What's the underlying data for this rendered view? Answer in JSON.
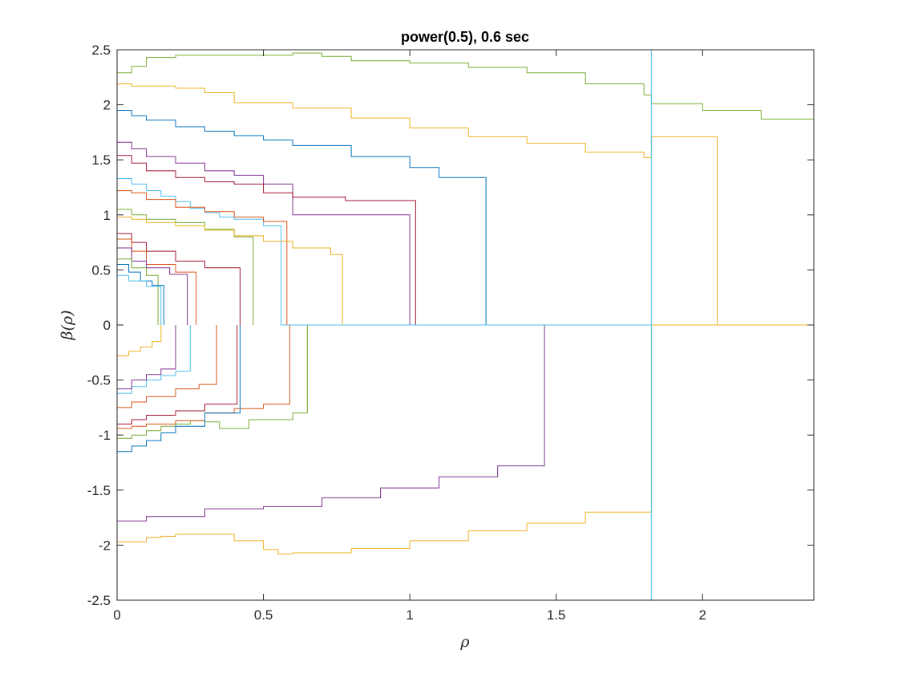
{
  "chart_data": {
    "type": "line",
    "title": "power(0.5), 0.6 sec",
    "xlabel": "ρ",
    "ylabel": "β(ρ)",
    "xlim": [
      0,
      2.38
    ],
    "ylim": [
      -2.5,
      2.5
    ],
    "x_ticks": [
      0,
      0.5,
      1,
      1.5,
      2
    ],
    "x_tick_labels": [
      "0",
      "0.5",
      "1",
      "1.5",
      "2"
    ],
    "y_ticks": [
      -2.5,
      -2,
      -1.5,
      -1,
      -0.5,
      0,
      0.5,
      1,
      1.5,
      2,
      2.5
    ],
    "y_tick_labels": [
      "-2.5",
      "-2",
      "-1.5",
      "-1",
      "-0.5",
      "0",
      "0.5",
      "1",
      "1.5",
      "2",
      "2.5"
    ],
    "grid": false,
    "box": true,
    "vertical_marker": {
      "x": 1.825,
      "color": "#4DBEEE"
    },
    "series": [
      {
        "color": "#77AC30",
        "x": [
          0,
          0.05,
          0.1,
          0.2,
          0.3,
          0.4,
          0.5,
          0.6,
          0.7,
          0.8,
          1.0,
          1.2,
          1.4,
          1.6,
          1.8,
          1.825,
          2.0,
          2.2,
          2.38,
          2.38,
          2.38
        ],
        "y": [
          2.29,
          2.35,
          2.43,
          2.45,
          2.45,
          2.45,
          2.45,
          2.47,
          2.44,
          2.4,
          2.38,
          2.34,
          2.29,
          2.19,
          2.09,
          2.01,
          1.95,
          1.87,
          1.79,
          0,
          0
        ]
      },
      {
        "color": "#EDB120",
        "x": [
          0,
          0.05,
          0.1,
          0.2,
          0.3,
          0.4,
          0.6,
          0.8,
          1.0,
          1.2,
          1.4,
          1.6,
          1.8,
          1.825,
          1.825,
          2.05,
          2.05,
          2.38
        ],
        "y": [
          2.19,
          2.17,
          2.17,
          2.15,
          2.11,
          2.02,
          1.97,
          1.88,
          1.79,
          1.71,
          1.65,
          1.57,
          1.52,
          1.52,
          1.71,
          1.61,
          0,
          0
        ]
      },
      {
        "color": "#0072BD",
        "x": [
          0,
          0.05,
          0.1,
          0.2,
          0.3,
          0.4,
          0.5,
          0.6,
          0.8,
          1.0,
          1.1,
          1.26,
          1.26,
          2.38
        ],
        "y": [
          1.95,
          1.9,
          1.86,
          1.8,
          1.76,
          1.72,
          1.68,
          1.63,
          1.53,
          1.43,
          1.34,
          1.19,
          0,
          0
        ]
      },
      {
        "color": "#7E2F8E",
        "x": [
          0,
          0.05,
          0.1,
          0.2,
          0.3,
          0.4,
          0.5,
          0.6,
          0.6,
          1.0,
          1.26,
          1.26,
          1.46,
          1.46,
          1.3,
          1.1,
          0.9,
          0.7,
          0.5,
          0.3,
          0.1,
          0
        ],
        "y": [
          1.66,
          1.6,
          1.53,
          1.47,
          1.4,
          1.36,
          1.28,
          1.14,
          1.0,
          0.0,
          0.0,
          0.0,
          0.0,
          -1.28,
          -1.38,
          -1.48,
          -1.57,
          -1.65,
          -1.67,
          -1.74,
          -1.78,
          -1.79
        ]
      },
      {
        "color": "#A2142F",
        "x": [
          0,
          0.05,
          0.1,
          0.2,
          0.3,
          0.4,
          0.5,
          0.6,
          0.78,
          0.78,
          1.02,
          1.02,
          0.9,
          0.6,
          0.6
        ],
        "y": [
          1.54,
          1.47,
          1.4,
          1.34,
          1.3,
          1.28,
          1.2,
          1.16,
          1.17,
          1.13,
          1.04,
          0,
          0,
          0,
          0
        ]
      },
      {
        "color": "#4DBEEE",
        "x": [
          0,
          0.05,
          0.1,
          0.15,
          0.2,
          0.25,
          0.3,
          0.35,
          0.4,
          0.5,
          0.56,
          0.56,
          2.38
        ],
        "y": [
          1.33,
          1.28,
          1.22,
          1.17,
          1.12,
          1.06,
          1.02,
          0.98,
          0.96,
          0.9,
          0.87,
          0,
          0
        ]
      },
      {
        "color": "#D95319",
        "x": [
          0,
          0.05,
          0.1,
          0.2,
          0.3,
          0.4,
          0.5,
          0.58,
          0.58
        ],
        "y": [
          1.22,
          1.2,
          1.14,
          1.07,
          1.03,
          0.98,
          0.94,
          0.89,
          0
        ]
      },
      {
        "color": "#77AC30",
        "x": [
          0,
          0.05,
          0.1,
          0.2,
          0.3,
          0.4,
          0.465,
          0.465
        ],
        "y": [
          1.05,
          1.0,
          0.96,
          0.93,
          0.87,
          0.8,
          0.63,
          0
        ]
      },
      {
        "color": "#EDB120",
        "x": [
          0,
          0.05,
          0.1,
          0.2,
          0.3,
          0.4,
          0.5,
          0.6,
          0.73,
          0.77,
          0.77
        ],
        "y": [
          0.98,
          0.96,
          0.93,
          0.9,
          0.86,
          0.81,
          0.76,
          0.7,
          0.64,
          0.58,
          0
        ]
      },
      {
        "color": "#A2142F",
        "x": [
          0,
          0.05,
          0.1,
          0.2,
          0.3,
          0.42,
          0.42
        ],
        "y": [
          0.83,
          0.75,
          0.67,
          0.58,
          0.52,
          0.5,
          0
        ]
      },
      {
        "color": "#D95319",
        "x": [
          0,
          0.05,
          0.1,
          0.2,
          0.27,
          0.27
        ],
        "y": [
          0.78,
          0.67,
          0.55,
          0.48,
          0.44,
          0
        ]
      },
      {
        "color": "#7E2F8E",
        "x": [
          0,
          0.05,
          0.1,
          0.18,
          0.24,
          0.24
        ],
        "y": [
          0.7,
          0.58,
          0.52,
          0.46,
          0.42,
          0
        ]
      },
      {
        "color": "#77AC30",
        "x": [
          0,
          0.05,
          0.1,
          0.14,
          0.14
        ],
        "y": [
          0.6,
          0.52,
          0.45,
          0.4,
          0
        ]
      },
      {
        "color": "#0072BD",
        "x": [
          0,
          0.04,
          0.08,
          0.12,
          0.16,
          0.16
        ],
        "y": [
          0.55,
          0.48,
          0.4,
          0.36,
          0.32,
          0
        ]
      },
      {
        "color": "#4DBEEE",
        "x": [
          0,
          0.04,
          0.1,
          0.15,
          0.15
        ],
        "y": [
          0.45,
          0.4,
          0.35,
          0.3,
          0
        ]
      },
      {
        "color": "#77AC30",
        "x": [
          0,
          0.05,
          0.1,
          0.15,
          0.2,
          0.25,
          0.3,
          0.35,
          0.45,
          0.6,
          0.65,
          0.65
        ],
        "y": [
          -1.03,
          -1.0,
          -0.96,
          -0.92,
          -0.9,
          -0.87,
          -0.88,
          -0.94,
          -0.86,
          -0.8,
          -0.77,
          0
        ]
      },
      {
        "color": "#D95319",
        "x": [
          0,
          0.05,
          0.1,
          0.2,
          0.3,
          0.4,
          0.5,
          0.59,
          0.59
        ],
        "y": [
          -0.94,
          -0.92,
          -0.9,
          -0.87,
          -0.8,
          -0.76,
          -0.72,
          -0.68,
          0
        ]
      },
      {
        "color": "#A2142F",
        "x": [
          0,
          0.05,
          0.1,
          0.2,
          0.3,
          0.41,
          0.41
        ],
        "y": [
          -0.9,
          -0.86,
          -0.82,
          -0.78,
          -0.72,
          -0.63,
          0
        ]
      },
      {
        "color": "#0072BD",
        "x": [
          0,
          0.05,
          0.1,
          0.15,
          0.2,
          0.3,
          0.42,
          0.42
        ],
        "y": [
          -1.15,
          -1.1,
          -1.05,
          -0.98,
          -0.92,
          -0.8,
          -0.62,
          0
        ]
      },
      {
        "color": "#D95319",
        "x": [
          0,
          0.05,
          0.1,
          0.2,
          0.28,
          0.34,
          0.34
        ],
        "y": [
          -0.75,
          -0.7,
          -0.65,
          -0.58,
          -0.54,
          -0.5,
          0
        ]
      },
      {
        "color": "#4DBEEE",
        "x": [
          0,
          0.05,
          0.1,
          0.15,
          0.2,
          0.25,
          0.25
        ],
        "y": [
          -0.62,
          -0.56,
          -0.5,
          -0.46,
          -0.42,
          -0.38,
          0
        ]
      },
      {
        "color": "#7E2F8E",
        "x": [
          0,
          0.05,
          0.1,
          0.15,
          0.2,
          0.2
        ],
        "y": [
          -0.58,
          -0.5,
          -0.45,
          -0.4,
          -0.35,
          0
        ]
      },
      {
        "color": "#EDB120",
        "x": [
          0,
          0.04,
          0.08,
          0.12,
          0.15,
          0.15
        ],
        "y": [
          -0.28,
          -0.24,
          -0.2,
          -0.15,
          -0.1,
          0
        ]
      },
      {
        "color": "#EDB120",
        "x": [
          0,
          0.1,
          0.15,
          0.2,
          0.3,
          0.4,
          0.5,
          0.55,
          0.6,
          0.8,
          1.0,
          1.2,
          1.4,
          1.6,
          1.825,
          1.825,
          2.38
        ],
        "y": [
          -1.97,
          -1.93,
          -1.92,
          -1.9,
          -1.9,
          -1.96,
          -2.04,
          -2.08,
          -2.07,
          -2.03,
          -1.96,
          -1.87,
          -1.8,
          -1.7,
          -1.52,
          0,
          0
        ]
      }
    ]
  }
}
